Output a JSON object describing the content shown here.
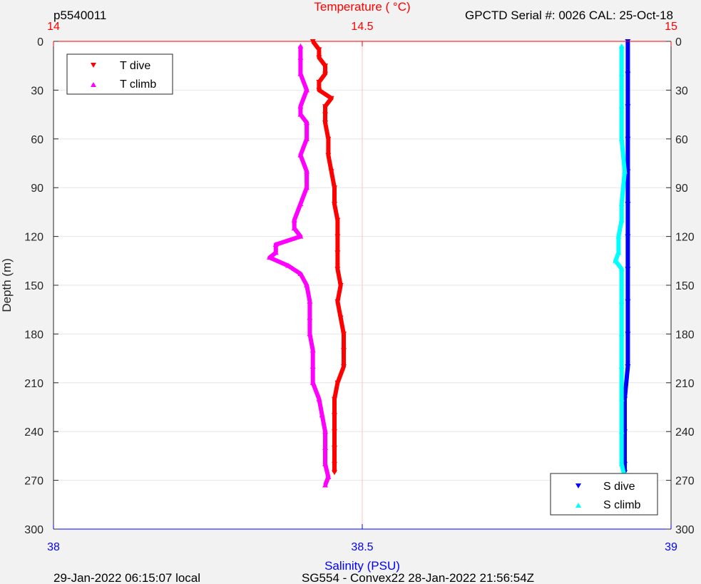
{
  "header": {
    "left_label": "p5540011",
    "right_label": "GPCTD Serial #: 0026 CAL: 25-Oct-18"
  },
  "footer": {
    "left": "29-Jan-2022 06:15:07 local",
    "center": "SG554 - Convex22 28-Jan-2022 21:56:54Z"
  },
  "colors": {
    "t_dive": "#ff0000",
    "t_climb": "#ff00ff",
    "s_dive": "#0000ff",
    "s_climb": "#00ffff",
    "top_axis": "#ff0000",
    "bottom_axis": "#0000ff",
    "grid": "#e6e6e6",
    "center_line": "#f5c7b8"
  },
  "chart_data": {
    "type": "scatter",
    "top_axis": {
      "label": "Temperature (    °C)",
      "range": [
        14,
        15
      ],
      "ticks": [
        "14",
        "14.5",
        "15"
      ]
    },
    "bottom_axis": {
      "label": "Salinity (PSU)",
      "range": [
        38,
        39
      ],
      "ticks": [
        "38",
        "38.5",
        "39"
      ]
    },
    "y_axis": {
      "label": "Depth (m)",
      "range": [
        0,
        300
      ],
      "reversed": true,
      "ticks": [
        "0",
        "30",
        "60",
        "90",
        "120",
        "150",
        "180",
        "210",
        "240",
        "270",
        "300"
      ]
    },
    "grid": true,
    "legends": [
      {
        "placement": "top-left",
        "entries": [
          "T dive",
          "T climb"
        ]
      },
      {
        "placement": "bottom-right",
        "entries": [
          "S dive",
          "S climb"
        ]
      }
    ],
    "series": [
      {
        "name": "T dive",
        "axis": "temperature",
        "marker": "triangle-down",
        "depth": [
          0,
          5,
          10,
          15,
          20,
          25,
          30,
          35,
          40,
          45,
          50,
          60,
          70,
          80,
          90,
          100,
          110,
          120,
          130,
          140,
          150,
          160,
          170,
          180,
          190,
          200,
          210,
          220,
          230,
          240,
          250,
          260,
          265
        ],
        "values": [
          14.42,
          14.43,
          14.43,
          14.44,
          14.44,
          14.43,
          14.43,
          14.45,
          14.44,
          14.44,
          14.44,
          14.445,
          14.445,
          14.45,
          14.455,
          14.455,
          14.46,
          14.46,
          14.46,
          14.46,
          14.465,
          14.46,
          14.465,
          14.47,
          14.47,
          14.47,
          14.46,
          14.455,
          14.455,
          14.455,
          14.455,
          14.455,
          14.455
        ]
      },
      {
        "name": "T climb",
        "axis": "temperature",
        "marker": "triangle-up",
        "depth": [
          3,
          10,
          20,
          30,
          40,
          45,
          50,
          60,
          70,
          80,
          90,
          100,
          110,
          115,
          120,
          125,
          130,
          133,
          138,
          143,
          150,
          160,
          170,
          180,
          190,
          200,
          210,
          220,
          230,
          240,
          250,
          260,
          268,
          273
        ],
        "values": [
          14.4,
          14.4,
          14.4,
          14.41,
          14.4,
          14.4,
          14.41,
          14.41,
          14.4,
          14.41,
          14.41,
          14.4,
          14.39,
          14.39,
          14.4,
          14.36,
          14.36,
          14.35,
          14.38,
          14.4,
          14.41,
          14.415,
          14.415,
          14.415,
          14.42,
          14.42,
          14.42,
          14.43,
          14.435,
          14.44,
          14.44,
          14.44,
          14.445,
          14.44
        ]
      },
      {
        "name": "S dive",
        "axis": "salinity",
        "marker": "triangle-down",
        "depth": [
          0,
          20,
          40,
          60,
          80,
          100,
          120,
          140,
          160,
          180,
          200,
          220,
          240,
          260,
          265
        ],
        "values": [
          38.93,
          38.93,
          38.93,
          38.93,
          38.93,
          38.93,
          38.93,
          38.93,
          38.93,
          38.93,
          38.93,
          38.925,
          38.925,
          38.925,
          38.925
        ]
      },
      {
        "name": "S climb",
        "axis": "salinity",
        "marker": "triangle-up",
        "depth": [
          3,
          20,
          40,
          60,
          80,
          100,
          110,
          120,
          130,
          135,
          140,
          160,
          180,
          200,
          220,
          240,
          260,
          268,
          273
        ],
        "values": [
          38.92,
          38.92,
          38.92,
          38.92,
          38.925,
          38.92,
          38.92,
          38.915,
          38.915,
          38.91,
          38.92,
          38.92,
          38.92,
          38.92,
          38.92,
          38.92,
          38.92,
          38.925,
          38.925
        ]
      }
    ]
  }
}
